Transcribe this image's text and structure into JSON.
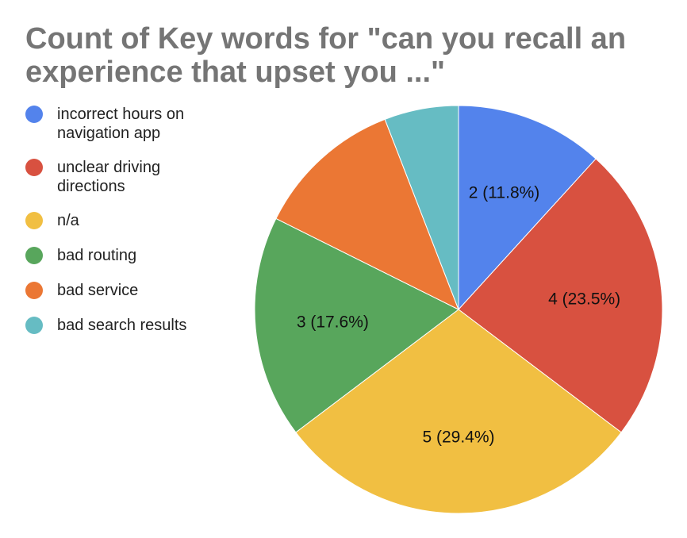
{
  "chart_data": {
    "type": "pie",
    "title": "Count of Key words for \"can you recall an experience that upset you ...\"",
    "title_lines": [
      "Count of Key words for \"can you recall an",
      "experience that upset you ...\""
    ],
    "legend_position": "left",
    "slices": [
      {
        "name": "incorrect hours on navigation app",
        "value": 2,
        "percent": 11.8,
        "label": "2 (11.8%)",
        "color": "#5383ec"
      },
      {
        "name": "unclear driving directions",
        "value": 4,
        "percent": 23.5,
        "label": "4 (23.5%)",
        "color": "#d85140"
      },
      {
        "name": "n/a",
        "value": 5,
        "percent": 29.4,
        "label": "5 (29.4%)",
        "color": "#f1bf42"
      },
      {
        "name": "bad routing",
        "value": 3,
        "percent": 17.6,
        "label": "3 (17.6%)",
        "color": "#58a65c"
      },
      {
        "name": "bad service",
        "value": 2,
        "percent": 11.8,
        "label": "",
        "color": "#eb7734"
      },
      {
        "name": "bad search results",
        "value": 1,
        "percent": 5.9,
        "label": "",
        "color": "#66bcc3"
      }
    ]
  }
}
